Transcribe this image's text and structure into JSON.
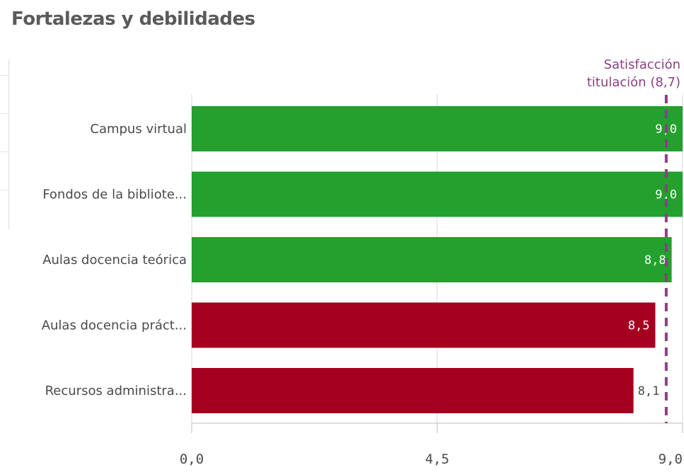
{
  "page": {
    "title": "Fortalezas y debilidades"
  },
  "colors": {
    "strength": "#23a02d",
    "weakness": "#a50020",
    "reference": "#8c3f83",
    "grid": "#d9d9d9",
    "axis": "#bdbdbd",
    "label_inside": "#ffffff",
    "label_outside": "#4a4a4a"
  },
  "chart_data": {
    "type": "bar",
    "orientation": "horizontal",
    "title": "Fortalezas y debilidades",
    "categories": [
      "Campus virtual",
      "Fondos de la bibliote...",
      "Aulas docencia teórica",
      "Aulas docencia práct...",
      "Recursos administra..."
    ],
    "values": [
      9.0,
      9.0,
      8.8,
      8.5,
      8.1
    ],
    "value_labels": [
      "9,0",
      "9,0",
      "8,8",
      "8,5",
      "8,1"
    ],
    "bar_status": [
      "strength",
      "strength",
      "strength",
      "weakness",
      "weakness"
    ],
    "xlim": [
      0,
      9.0
    ],
    "ticks": [
      {
        "value": 0,
        "label": "0,0"
      },
      {
        "value": 4.5,
        "label": "4,5"
      },
      {
        "value": 9.0,
        "label": "9,0"
      }
    ],
    "grid": true,
    "reference_line": {
      "value": 8.7,
      "label_lines": [
        "Satisfacción",
        "titulación (8,7)"
      ],
      "style": "dashed"
    }
  }
}
